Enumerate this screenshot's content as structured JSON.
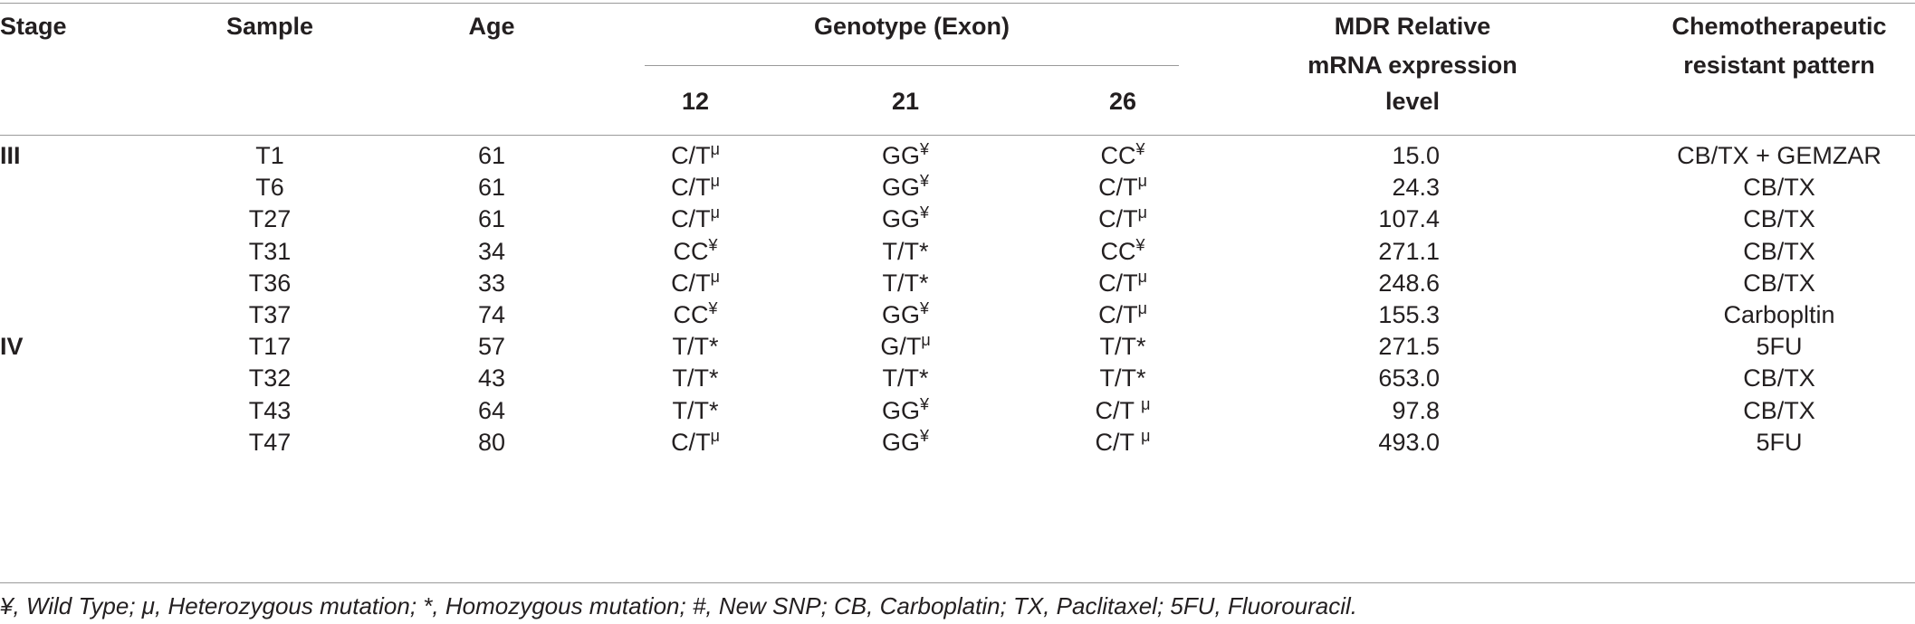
{
  "headers": {
    "stage": "Stage",
    "sample": "Sample",
    "age": "Age",
    "genotype": "Genotype (Exon)",
    "exon12": "12",
    "exon21": "21",
    "exon26": "26",
    "mdr_line1": "MDR Relative",
    "mdr_line2": "mRNA expression",
    "mdr_line3": "level",
    "chemo_line1": "Chemotherapeutic",
    "chemo_line2": "resistant pattern"
  },
  "rows": [
    {
      "stage": "III",
      "sample": "T1",
      "age": "61",
      "e12": "C/T",
      "e12s": "μ",
      "e21": "GG",
      "e21s": "¥",
      "e26": "CC",
      "e26s": "¥",
      "mdr": "15.0",
      "chemo": "CB/TX + GEMZAR"
    },
    {
      "stage": "",
      "sample": "T6",
      "age": "61",
      "e12": "C/T",
      "e12s": "μ",
      "e21": "GG",
      "e21s": "¥",
      "e26": "C/T",
      "e26s": "μ",
      "mdr": "24.3",
      "chemo": "CB/TX"
    },
    {
      "stage": "",
      "sample": "T27",
      "age": "61",
      "e12": "C/T",
      "e12s": "μ",
      "e21": "GG",
      "e21s": "¥",
      "e26": "C/T",
      "e26s": "μ",
      "mdr": "107.4",
      "chemo": "CB/TX"
    },
    {
      "stage": "",
      "sample": "T31",
      "age": "34",
      "e12": "CC",
      "e12s": "¥",
      "e21": "T/T*",
      "e21s": "",
      "e26": "CC",
      "e26s": "¥",
      "mdr": "271.1",
      "chemo": "CB/TX"
    },
    {
      "stage": "",
      "sample": "T36",
      "age": "33",
      "e12": "C/T",
      "e12s": "μ",
      "e21": "T/T*",
      "e21s": "",
      "e26": "C/T",
      "e26s": "μ",
      "mdr": "248.6",
      "chemo": "CB/TX"
    },
    {
      "stage": "",
      "sample": "T37",
      "age": "74",
      "e12": "CC",
      "e12s": "¥",
      "e21": "GG",
      "e21s": "¥",
      "e26": "C/T",
      "e26s": "μ",
      "mdr": "155.3",
      "chemo": "Carbopltin"
    },
    {
      "stage": "IV",
      "sample": "T17",
      "age": "57",
      "e12": "T/T*",
      "e12s": "",
      "e21": "G/T",
      "e21s": "μ",
      "e26": "T/T*",
      "e26s": "",
      "mdr": "271.5",
      "chemo": "5FU"
    },
    {
      "stage": "",
      "sample": "T32",
      "age": "43",
      "e12": "T/T*",
      "e12s": "",
      "e21": "T/T*",
      "e21s": "",
      "e26": "T/T*",
      "e26s": "",
      "mdr": "653.0",
      "chemo": "CB/TX"
    },
    {
      "stage": "",
      "sample": "T43",
      "age": "64",
      "e12": "T/T*",
      "e12s": "",
      "e21": "GG",
      "e21s": "¥",
      "e26": "C/T ",
      "e26s": "μ",
      "mdr": "97.8",
      "chemo": "CB/TX"
    },
    {
      "stage": "",
      "sample": "T47",
      "age": "80",
      "e12": "C/T",
      "e12s": "μ",
      "e21": "GG",
      "e21s": "¥",
      "e26": "C/T ",
      "e26s": "μ",
      "mdr": "493.0",
      "chemo": "5FU"
    }
  ],
  "footnote": "¥, Wild Type; μ, Heterozygous mutation; *, Homozygous mutation; #, New SNP; CB, Carboplatin; TX, Paclitaxel; 5FU, Fluorouracil."
}
